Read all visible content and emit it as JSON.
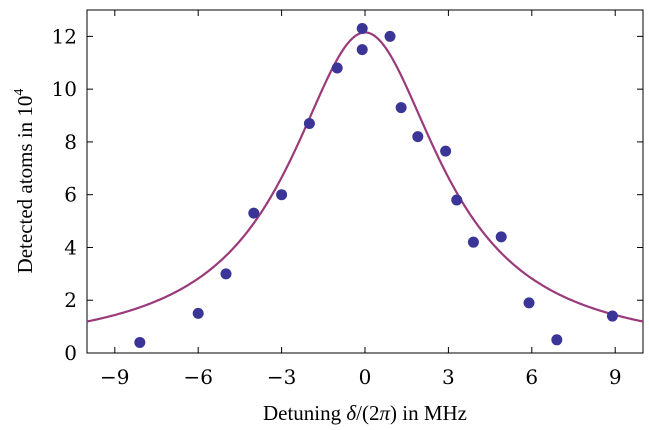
{
  "chart_data": {
    "type": "scatter",
    "xlabel_parts": [
      "Detuning ",
      "δ",
      "/(2",
      "π",
      ") in MHz"
    ],
    "ylabel_parts": [
      "Detected atoms in 10",
      "4"
    ],
    "xlim": [
      -10,
      10
    ],
    "ylim": [
      0,
      13
    ],
    "x_ticks": [
      -9,
      -6,
      -3,
      0,
      3,
      6,
      9
    ],
    "x_tick_labels": [
      "−9",
      "−6",
      "−3",
      "0",
      "3",
      "6",
      "9"
    ],
    "y_ticks": [
      0,
      2,
      4,
      6,
      8,
      10,
      12
    ],
    "y_tick_labels": [
      "0",
      "2",
      "4",
      "6",
      "8",
      "10",
      "12"
    ],
    "grid": false,
    "legend": "none",
    "points": [
      {
        "x": -8.1,
        "y": 0.4
      },
      {
        "x": -6.0,
        "y": 1.5
      },
      {
        "x": -5.0,
        "y": 3.0
      },
      {
        "x": -4.0,
        "y": 5.3
      },
      {
        "x": -3.0,
        "y": 6.0
      },
      {
        "x": -2.0,
        "y": 8.7
      },
      {
        "x": -1.0,
        "y": 10.8
      },
      {
        "x": -0.1,
        "y": 11.5
      },
      {
        "x": -0.1,
        "y": 12.3
      },
      {
        "x": 0.9,
        "y": 12.0
      },
      {
        "x": 1.3,
        "y": 9.3
      },
      {
        "x": 1.9,
        "y": 8.2
      },
      {
        "x": 2.9,
        "y": 7.65
      },
      {
        "x": 3.3,
        "y": 5.8
      },
      {
        "x": 3.9,
        "y": 4.2
      },
      {
        "x": 4.9,
        "y": 4.4
      },
      {
        "x": 5.9,
        "y": 1.9
      },
      {
        "x": 6.9,
        "y": 0.5
      },
      {
        "x": 8.9,
        "y": 1.4
      }
    ],
    "fit": {
      "type": "lorentzian",
      "amplitude": 12.15,
      "center": 0.0,
      "hwhm": 3.3
    },
    "colors": {
      "points": "#3a3597",
      "fit_line": "#9b3a7a",
      "axes": "#000000"
    }
  }
}
